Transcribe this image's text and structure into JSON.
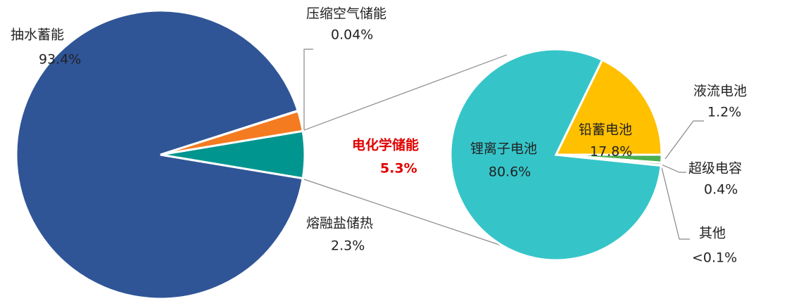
{
  "chart_data": [
    {
      "type": "pie",
      "categories": [
        "抽水蓄能",
        "压缩空气储能",
        "熔融盐储热",
        "电化学储能"
      ],
      "values": [
        93.4,
        0.04,
        2.3,
        5.3
      ],
      "value_labels": [
        "93.4%",
        "0.04%",
        "2.3%",
        "5.3%"
      ],
      "colors": [
        "#2f5597",
        "#c9c9c9",
        "#f47b20",
        "#00968f"
      ]
    },
    {
      "type": "pie",
      "categories": [
        "锂离子电池",
        "铅蓄电池",
        "液流电池",
        "超级电容",
        "其他"
      ],
      "values": [
        80.6,
        17.8,
        1.2,
        0.4,
        0.05
      ],
      "value_labels": [
        "80.6%",
        "17.8%",
        "1.2%",
        "0.4%",
        "<0.1%"
      ],
      "colors": [
        "#35c5c9",
        "#ffc000",
        "#4caf50",
        "#8fbc8f",
        "#a0a0a0"
      ]
    }
  ]
}
